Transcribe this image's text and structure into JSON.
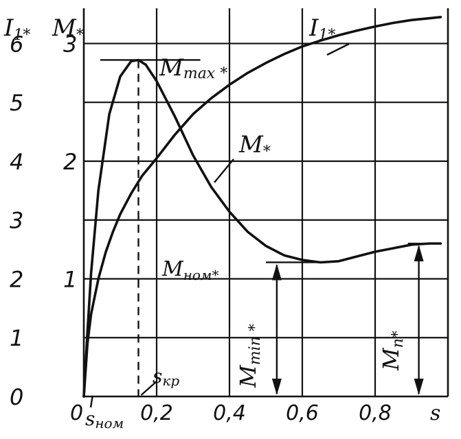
{
  "chart_data": {
    "type": "line",
    "title": "",
    "xlabel": "s",
    "x_tick_labels": [
      "0",
      "0,2",
      "0,4",
      "0,6",
      "0,8"
    ],
    "x_ticks": [
      0,
      0.2,
      0.4,
      0.6,
      0.8
    ],
    "xlim": [
      0,
      1.0
    ],
    "yaxes": [
      {
        "label": "I₁*",
        "tick_labels": [
          "0",
          "1",
          "2",
          "3",
          "4",
          "5",
          "6"
        ],
        "ticks": [
          0,
          1,
          2,
          3,
          4,
          5,
          6
        ],
        "ylim": [
          0,
          6.6
        ]
      },
      {
        "label": "M*",
        "tick_labels": [
          "1",
          "2",
          "3"
        ],
        "ticks": [
          1,
          2,
          3
        ],
        "ylim": [
          0,
          3.3
        ]
      }
    ],
    "grid": true,
    "series": [
      {
        "name": "M*",
        "axis": "M*",
        "x": [
          0,
          0.01,
          0.02,
          0.04,
          0.07,
          0.1,
          0.13,
          0.15,
          0.17,
          0.2,
          0.25,
          0.3,
          0.35,
          0.4,
          0.45,
          0.5,
          0.55,
          0.6,
          0.65,
          0.7,
          0.75,
          0.8,
          0.85,
          0.9,
          0.95,
          0.98
        ],
        "values": [
          0,
          0.55,
          1.05,
          1.75,
          2.4,
          2.72,
          2.85,
          2.86,
          2.82,
          2.68,
          2.38,
          2.05,
          1.78,
          1.57,
          1.4,
          1.28,
          1.2,
          1.16,
          1.14,
          1.15,
          1.19,
          1.23,
          1.26,
          1.29,
          1.3,
          1.3
        ]
      },
      {
        "name": "I₁*",
        "axis": "I₁*",
        "x": [
          0,
          0.01,
          0.02,
          0.04,
          0.06,
          0.08,
          0.1,
          0.13,
          0.16,
          0.2,
          0.25,
          0.3,
          0.35,
          0.4,
          0.45,
          0.5,
          0.55,
          0.6,
          0.65,
          0.7,
          0.75,
          0.8,
          0.85,
          0.9,
          0.95,
          0.98
        ],
        "values": [
          0,
          0.9,
          1.4,
          2.0,
          2.45,
          2.8,
          3.1,
          3.45,
          3.75,
          4.05,
          4.45,
          4.8,
          5.07,
          5.3,
          5.5,
          5.67,
          5.82,
          5.95,
          6.05,
          6.14,
          6.22,
          6.29,
          6.35,
          6.4,
          6.43,
          6.45
        ]
      }
    ],
    "annotations": {
      "s_nom": "sном",
      "s_kr": "sкр",
      "M_max": "Mmax *",
      "M_nom": "Mном*",
      "M_min": "Mmin *",
      "M_p": "Mп*"
    },
    "marked_values": {
      "s_nom": 0.02,
      "s_kr": 0.15,
      "M_max": 2.86,
      "M_min": 1.14,
      "M_p": 1.3
    }
  }
}
